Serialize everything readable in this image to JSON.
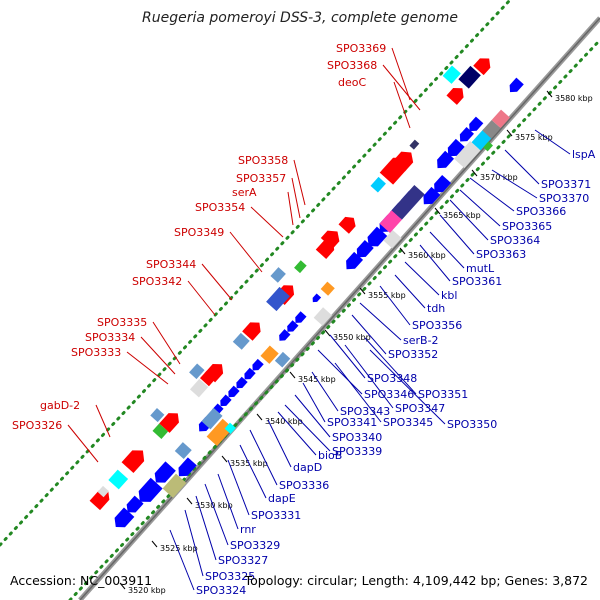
{
  "title": "Ruegeria pomeroyi DSS-3, complete genome",
  "footer": {
    "accession": "Accession: NC_003911",
    "summary": "Topology: circular; Length: 4,109,442 bp; Genes: 3,872"
  },
  "ticks": [
    "3520 kbp",
    "3525 kbp",
    "3530 kbp",
    "3535 kbp",
    "3540 kbp",
    "3545 kbp",
    "3550 kbp",
    "3555 kbp",
    "3560 kbp",
    "3565 kbp",
    "3570 kbp",
    "3575 kbp",
    "3580 kbp"
  ],
  "labels_forward": [
    "SPO3369",
    "SPO3368",
    "deoC",
    "SPO3358",
    "SPO3357",
    "serA",
    "SPO3354",
    "SPO3349",
    "SPO3344",
    "SPO3342",
    "SPO3335",
    "SPO3334",
    "SPO3333",
    "gabD-2",
    "SPO3326"
  ],
  "labels_reverse": [
    "lspA",
    "SPO3371",
    "SPO3370",
    "SPO3366",
    "SPO3365",
    "SPO3364",
    "SPO3363",
    "mutL",
    "SPO3361",
    "kbl",
    "tdh",
    "SPO3356",
    "serB-2",
    "SPO3352",
    "SPO3348",
    "SPO3351",
    "SPO3347",
    "SPO3346",
    "SPO3350",
    "SPO3345",
    "SPO3343",
    "SPO3341",
    "SPO3340",
    "SPO3339",
    "bioB",
    "dapD",
    "SPO3336",
    "dapE",
    "SPO3331",
    "rnr",
    "SPO3329",
    "SPO3327",
    "SPO3325",
    "SPO3324"
  ],
  "colors": {
    "forward_cds": "#ff0000",
    "reverse_cds": "#0000ff",
    "backbone": "#888888",
    "gc_dots": "#228822",
    "forward_label": "#cc0000",
    "reverse_label": "#0000aa"
  }
}
